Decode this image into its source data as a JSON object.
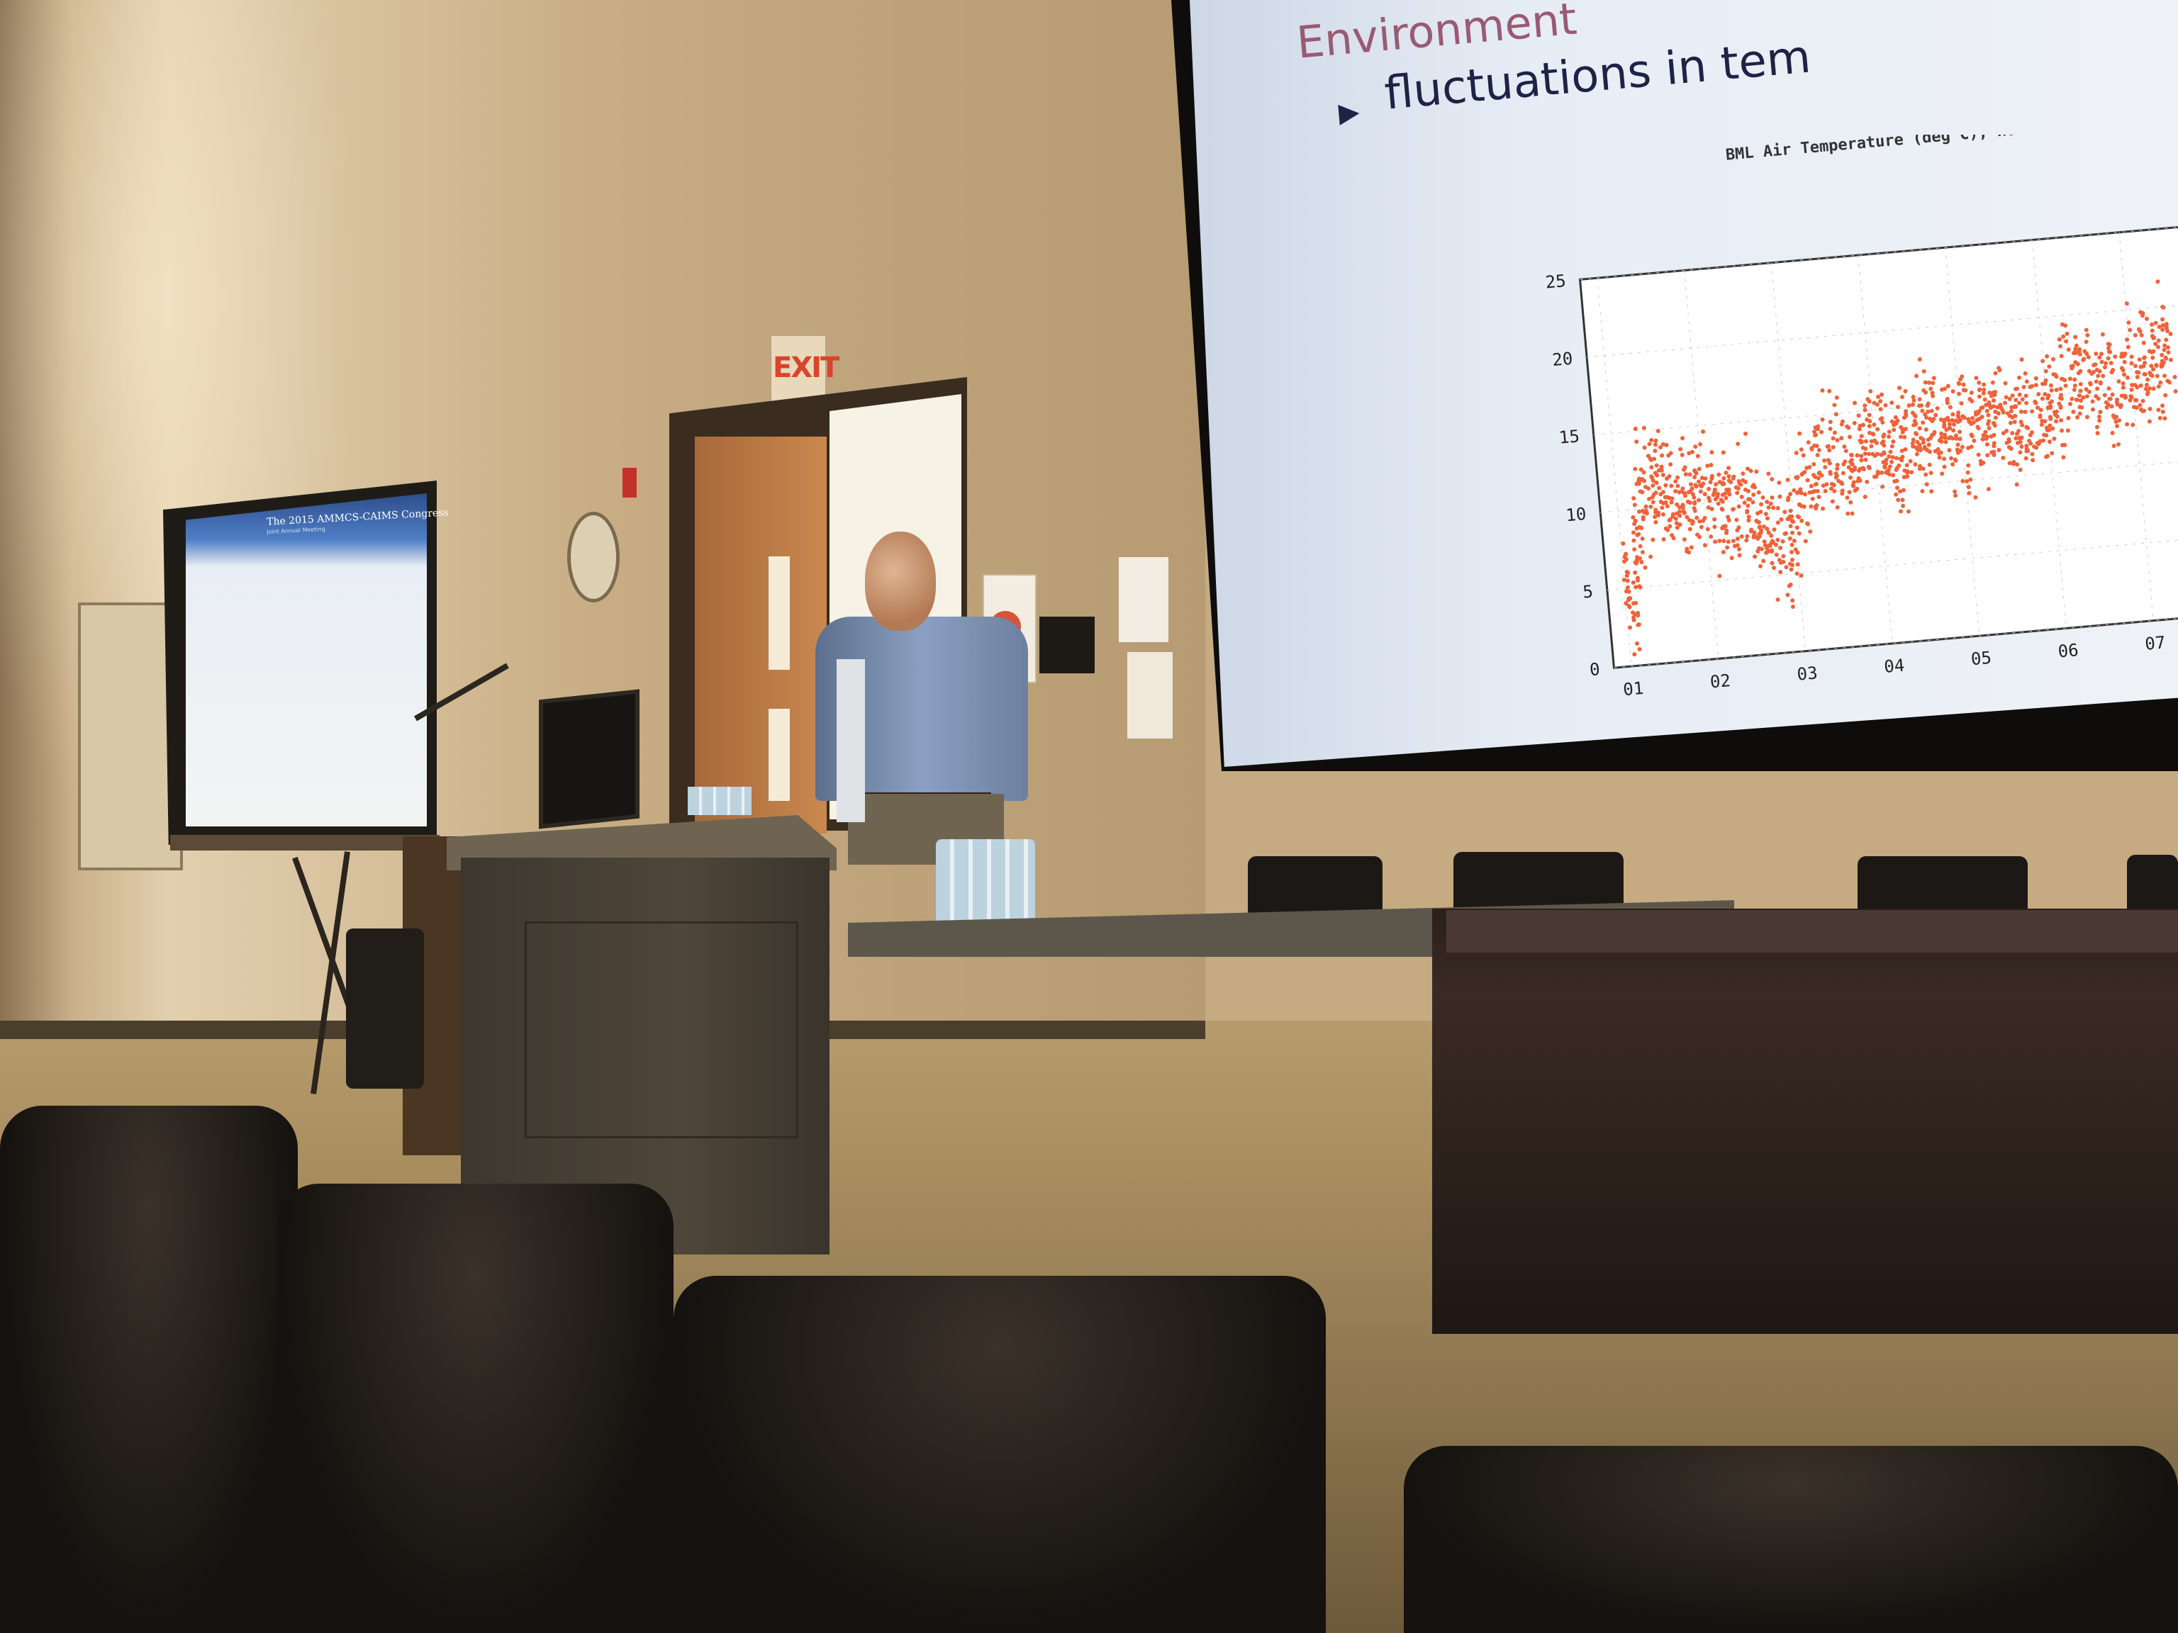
{
  "slide": {
    "title": "Environment",
    "bullet": "fluctuations in tem",
    "bullet_marker": "▶"
  },
  "small_screen": {
    "title": "The 2015 AMMCS-CAIMS Congress",
    "subtitle": "Joint Annual Meeting"
  },
  "exit_sign": {
    "text": "EXIT"
  },
  "chart_data": {
    "type": "scatter",
    "title": "BML Air Temperature (deg C), Hourl",
    "xlabel": "",
    "ylabel": "",
    "x_ticks": [
      "01",
      "02",
      "03",
      "04",
      "05",
      "06",
      "07"
    ],
    "y_ticks": [
      0,
      5,
      10,
      15,
      20,
      25
    ],
    "ylim": [
      0,
      25
    ],
    "color": "#f0623a",
    "series": [
      {
        "x": [
          1.0,
          1.1,
          1.2,
          1.3,
          1.5,
          1.7,
          2.0,
          2.2,
          2.5,
          2.7,
          2.9,
          3.0,
          3.2,
          3.5,
          3.8,
          4.0,
          4.3,
          4.6,
          5.0,
          5.3,
          5.6,
          5.9,
          6.1,
          6.4,
          6.7,
          7.0,
          7.3,
          7.5
        ],
        "y": [
          6,
          4,
          8,
          11,
          12,
          10,
          11,
          9,
          10,
          8,
          7,
          9,
          11,
          13,
          12,
          13,
          12,
          14,
          13,
          14,
          13,
          14,
          15,
          16,
          15,
          16,
          17,
          17
        ]
      }
    ],
    "spread": 2.5
  },
  "colors": {
    "slide_bg": "#eef2f7",
    "slide_title": "#9a5a73",
    "points": "#f0623a",
    "wall": "#c6ab82"
  }
}
